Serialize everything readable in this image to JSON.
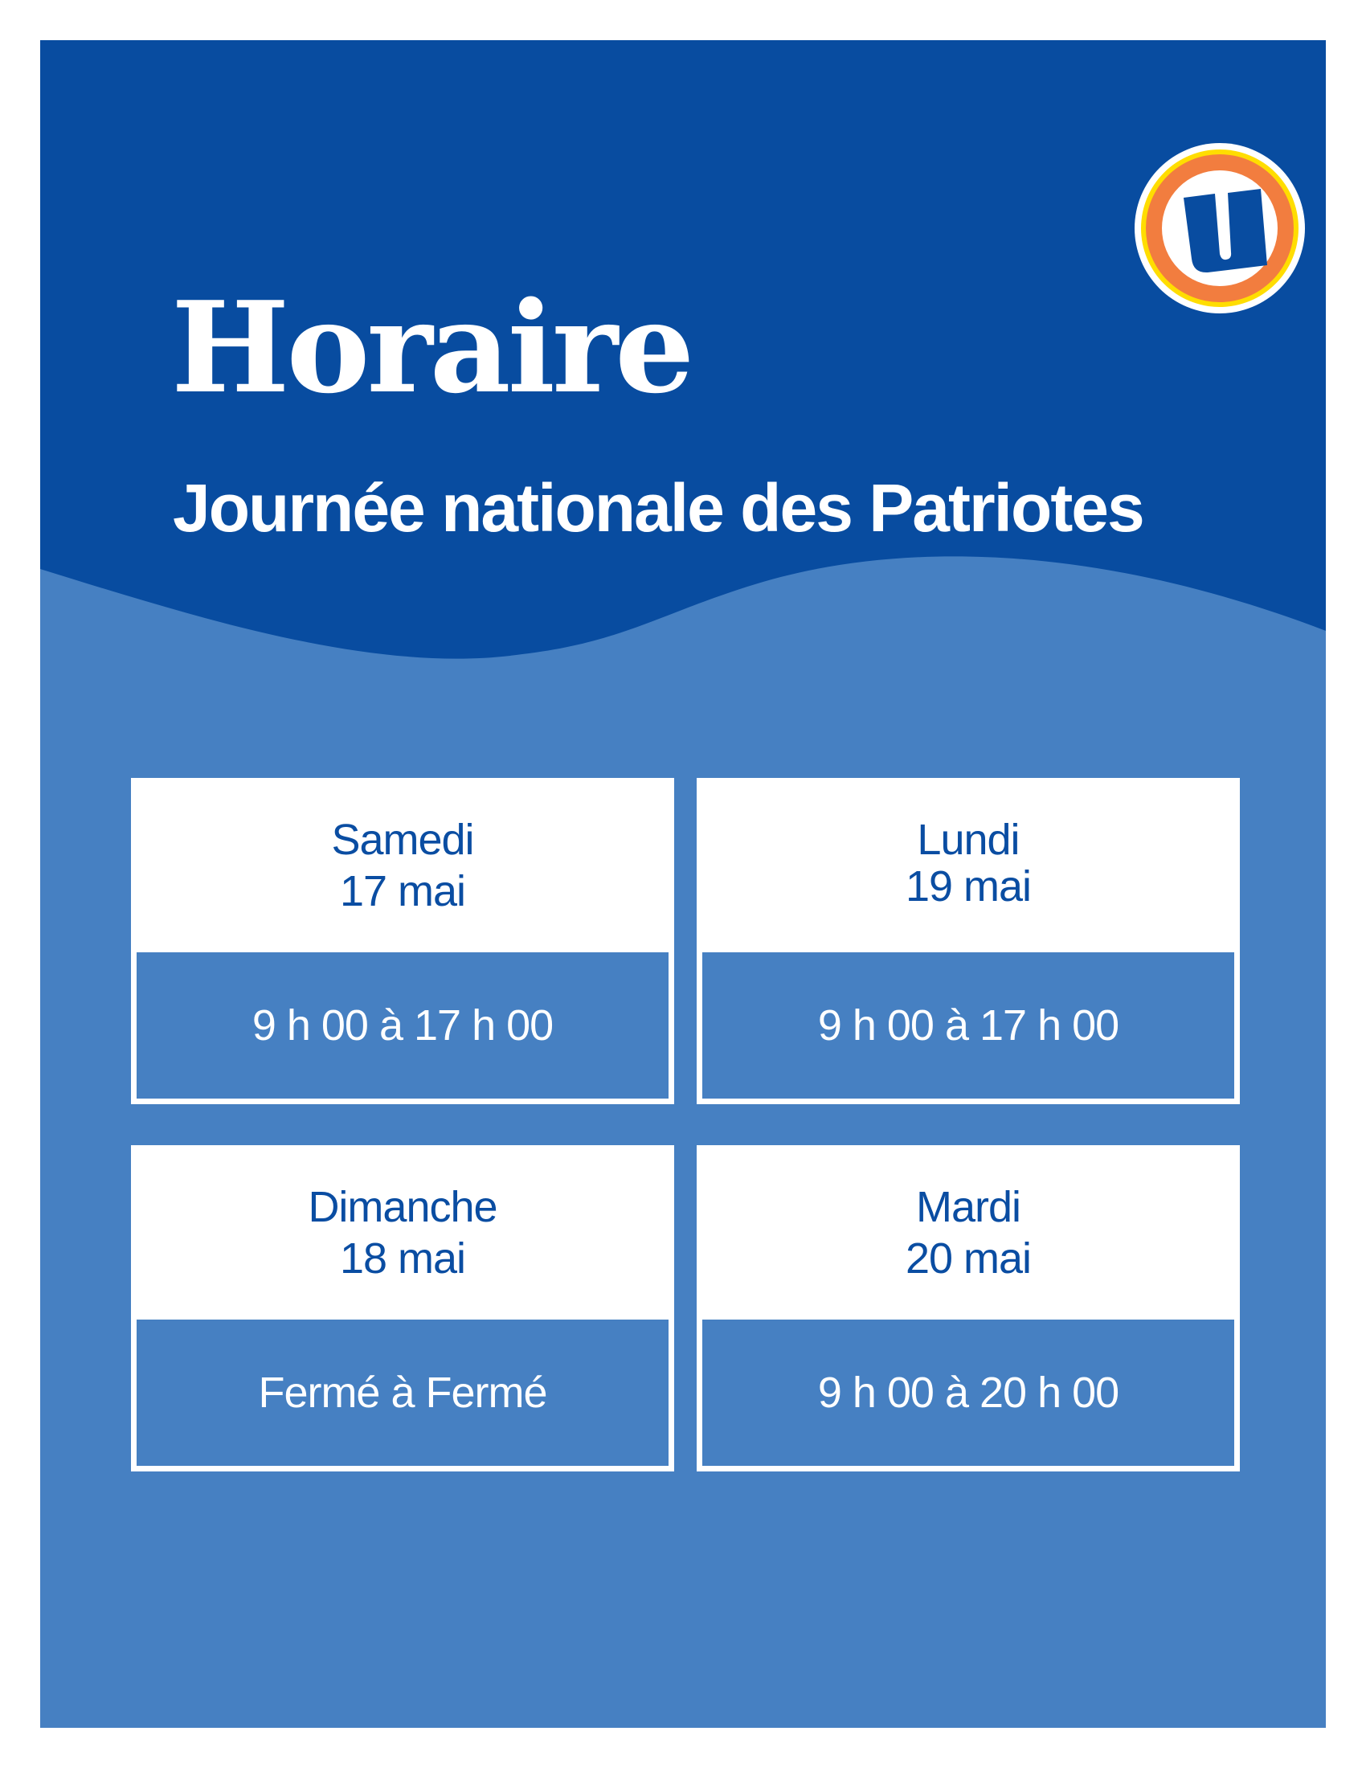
{
  "header": {
    "title": "Horaire",
    "subtitle": "Journée nationale des Patriotes",
    "logo": "U-logo"
  },
  "colors": {
    "dark_blue": "#084ca0",
    "light_blue": "#4680c2",
    "text_blue": "#0a4da2",
    "logo_orange": "#f27d3f",
    "logo_yellow": "#ffdd00"
  },
  "schedule": [
    {
      "day": "Samedi",
      "date": "17 mai",
      "hours": "9 h 00 à 17 h 00"
    },
    {
      "day": "Lundi",
      "date": "19 mai",
      "hours": "9 h 00 à 17 h 00"
    },
    {
      "day": "Dimanche",
      "date": "18 mai",
      "hours": "Fermé à Fermé"
    },
    {
      "day": "Mardi",
      "date": "20 mai",
      "hours": "9 h 00 à 20 h 00"
    }
  ]
}
